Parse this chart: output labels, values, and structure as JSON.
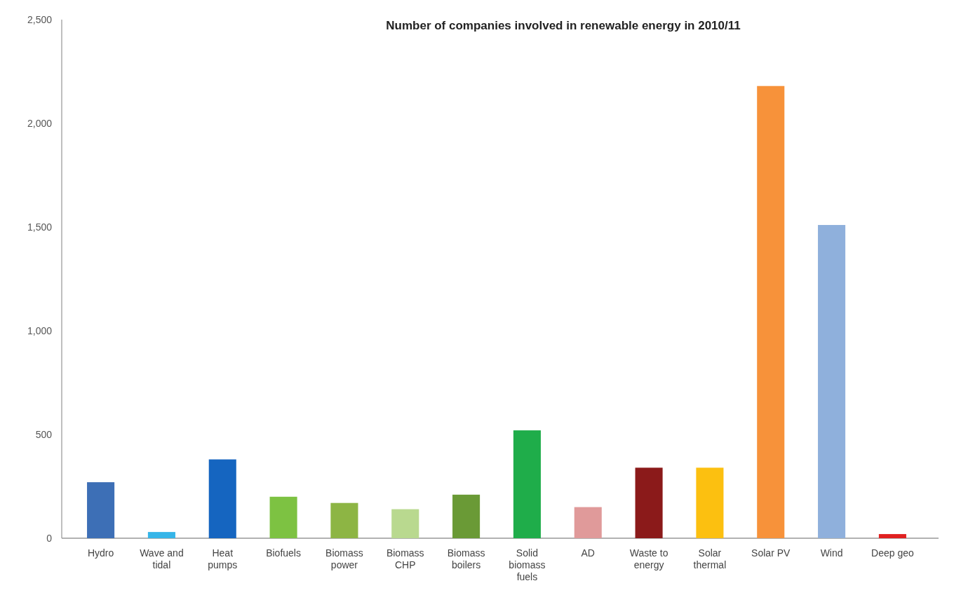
{
  "chart_data": {
    "type": "bar",
    "title": "Number of companies involved in renewable energy in 2010/11",
    "categories": [
      "Hydro",
      "Wave and tidal",
      "Heat pumps",
      "Biofuels",
      "Biomass power",
      "Biomass CHP",
      "Biomass boilers",
      "Solid biomass fuels",
      "AD",
      "Waste to energy",
      "Solar thermal",
      "Solar PV",
      "Wind",
      "Deep geo"
    ],
    "values": [
      270,
      30,
      380,
      200,
      170,
      140,
      210,
      520,
      150,
      340,
      340,
      2180,
      1510,
      20
    ],
    "colors": [
      "#3d6fb6",
      "#35b5e8",
      "#1565c0",
      "#7dc242",
      "#8db544",
      "#b9d98f",
      "#6a9a36",
      "#1fad4a",
      "#e09a9a",
      "#8b1a1a",
      "#fcc010",
      "#f7923a",
      "#8fb0dc",
      "#e02020"
    ],
    "ylim": [
      0,
      2500
    ],
    "yticks": [
      {
        "value": 0,
        "label": "0"
      },
      {
        "value": 500,
        "label": "500"
      },
      {
        "value": 1000,
        "label": "1,000"
      },
      {
        "value": 1500,
        "label": "1,500"
      },
      {
        "value": 2000,
        "label": "2,000"
      },
      {
        "value": 2500,
        "label": "2,500"
      }
    ],
    "grid": false
  }
}
